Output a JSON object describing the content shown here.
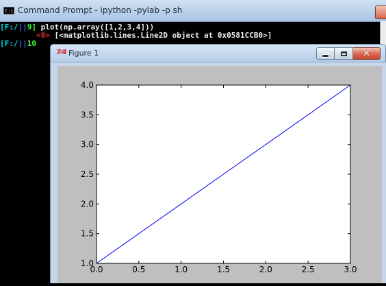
{
  "console": {
    "title": "Command Prompt - ipython  -pylab -p sh",
    "icon": "console-icon",
    "lines": [
      {
        "path": "F:/",
        "sep": "|",
        "num": "9",
        "cmd": "plot(np.array([1,2,3,4]))"
      },
      {
        "out_num": "<9>",
        "output": "[<matplotlib.lines.Line2D object at 0x0581CCB0>]"
      },
      {
        "path": "F:/",
        "sep": "|",
        "num": "10"
      }
    ]
  },
  "figure": {
    "title": "Figure 1",
    "icon": "matplotlib-icon",
    "icon_glyph": "7⁄4",
    "buttons": {
      "minimize": "minimize",
      "maximize": "maximize",
      "close": "close"
    }
  },
  "colors": {
    "line": "#0000ff",
    "figure_bg": "#bfbfbf",
    "axes_bg": "#ffffff"
  },
  "chart_data": {
    "type": "line",
    "x": [
      0,
      1,
      2,
      3
    ],
    "series": [
      {
        "values": [
          1,
          2,
          3,
          4
        ]
      }
    ],
    "xlim": [
      0,
      3
    ],
    "ylim": [
      1,
      4
    ],
    "xticks": [
      "0.0",
      "0.5",
      "1.0",
      "1.5",
      "2.0",
      "2.5",
      "3.0"
    ],
    "yticks": [
      "1.0",
      "1.5",
      "2.0",
      "2.5",
      "3.0",
      "3.5",
      "4.0"
    ],
    "grid": false,
    "title": "",
    "xlabel": "",
    "ylabel": ""
  }
}
